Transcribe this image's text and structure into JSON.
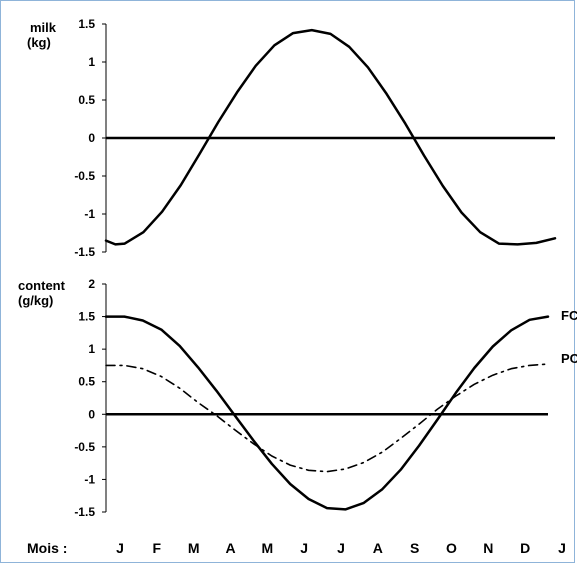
{
  "chart_data": [
    {
      "type": "line",
      "ylabel_line1": "milk",
      "ylabel_line2": "(kg)",
      "ylim": [
        -1.5,
        1.5
      ],
      "yticks": [
        "1.5",
        "1",
        "0.5",
        "0",
        "-0.5",
        "-1",
        "-1.5"
      ],
      "series": [
        {
          "style": "solid",
          "x": [
            0,
            0.25,
            0.5,
            1,
            1.5,
            2,
            2.5,
            3,
            3.5,
            4,
            4.5,
            5,
            5.5,
            6,
            6.5,
            7,
            7.5,
            8,
            8.5,
            9,
            9.5,
            10,
            10.5,
            11,
            11.5,
            12
          ],
          "values": [
            -1.35,
            -1.4,
            -1.39,
            -1.24,
            -0.97,
            -0.62,
            -0.21,
            0.21,
            0.6,
            0.95,
            1.22,
            1.38,
            1.42,
            1.37,
            1.2,
            0.93,
            0.58,
            0.19,
            -0.23,
            -0.63,
            -0.98,
            -1.24,
            -1.39,
            -1.4,
            -1.38,
            -1.32
          ]
        }
      ]
    },
    {
      "type": "line",
      "ylabel_line1": "content",
      "ylabel_line2": "(g/kg)",
      "ylim": [
        -1.5,
        2
      ],
      "yticks": [
        "2",
        "1.5",
        "1",
        "0.5",
        "0",
        "-0.5",
        "-1",
        "-1.5"
      ],
      "series": [
        {
          "name": "FC",
          "style": "solid",
          "x": [
            0,
            0.5,
            1,
            1.5,
            2,
            2.5,
            3,
            3.5,
            4,
            4.5,
            5,
            5.5,
            6,
            6.5,
            7,
            7.5,
            8,
            8.5,
            9,
            9.5,
            10,
            10.5,
            11,
            11.5,
            12
          ],
          "values": [
            1.5,
            1.5,
            1.44,
            1.3,
            1.05,
            0.72,
            0.36,
            -0.02,
            -0.4,
            -0.76,
            -1.07,
            -1.3,
            -1.44,
            -1.46,
            -1.36,
            -1.15,
            -0.85,
            -0.48,
            -0.08,
            0.33,
            0.71,
            1.04,
            1.29,
            1.45,
            1.5
          ]
        },
        {
          "name": "PC",
          "style": "dash-dot",
          "x": [
            0,
            0.5,
            1,
            1.5,
            2,
            2.5,
            3,
            3.5,
            4,
            4.5,
            5,
            5.5,
            6,
            6.5,
            7,
            7.5,
            8,
            8.5,
            9,
            9.5,
            10,
            10.5,
            11,
            11.5,
            12
          ],
          "values": [
            0.75,
            0.75,
            0.7,
            0.58,
            0.4,
            0.18,
            -0.02,
            -0.24,
            -0.45,
            -0.64,
            -0.78,
            -0.86,
            -0.88,
            -0.84,
            -0.74,
            -0.58,
            -0.37,
            -0.15,
            0.08,
            0.28,
            0.46,
            0.6,
            0.7,
            0.75,
            0.77
          ]
        }
      ]
    }
  ],
  "xaxis": {
    "label": "Mois :",
    "months": [
      "J",
      "F",
      "M",
      "A",
      "M",
      "J",
      "J",
      "A",
      "S",
      "O",
      "N",
      "D",
      "J"
    ]
  }
}
